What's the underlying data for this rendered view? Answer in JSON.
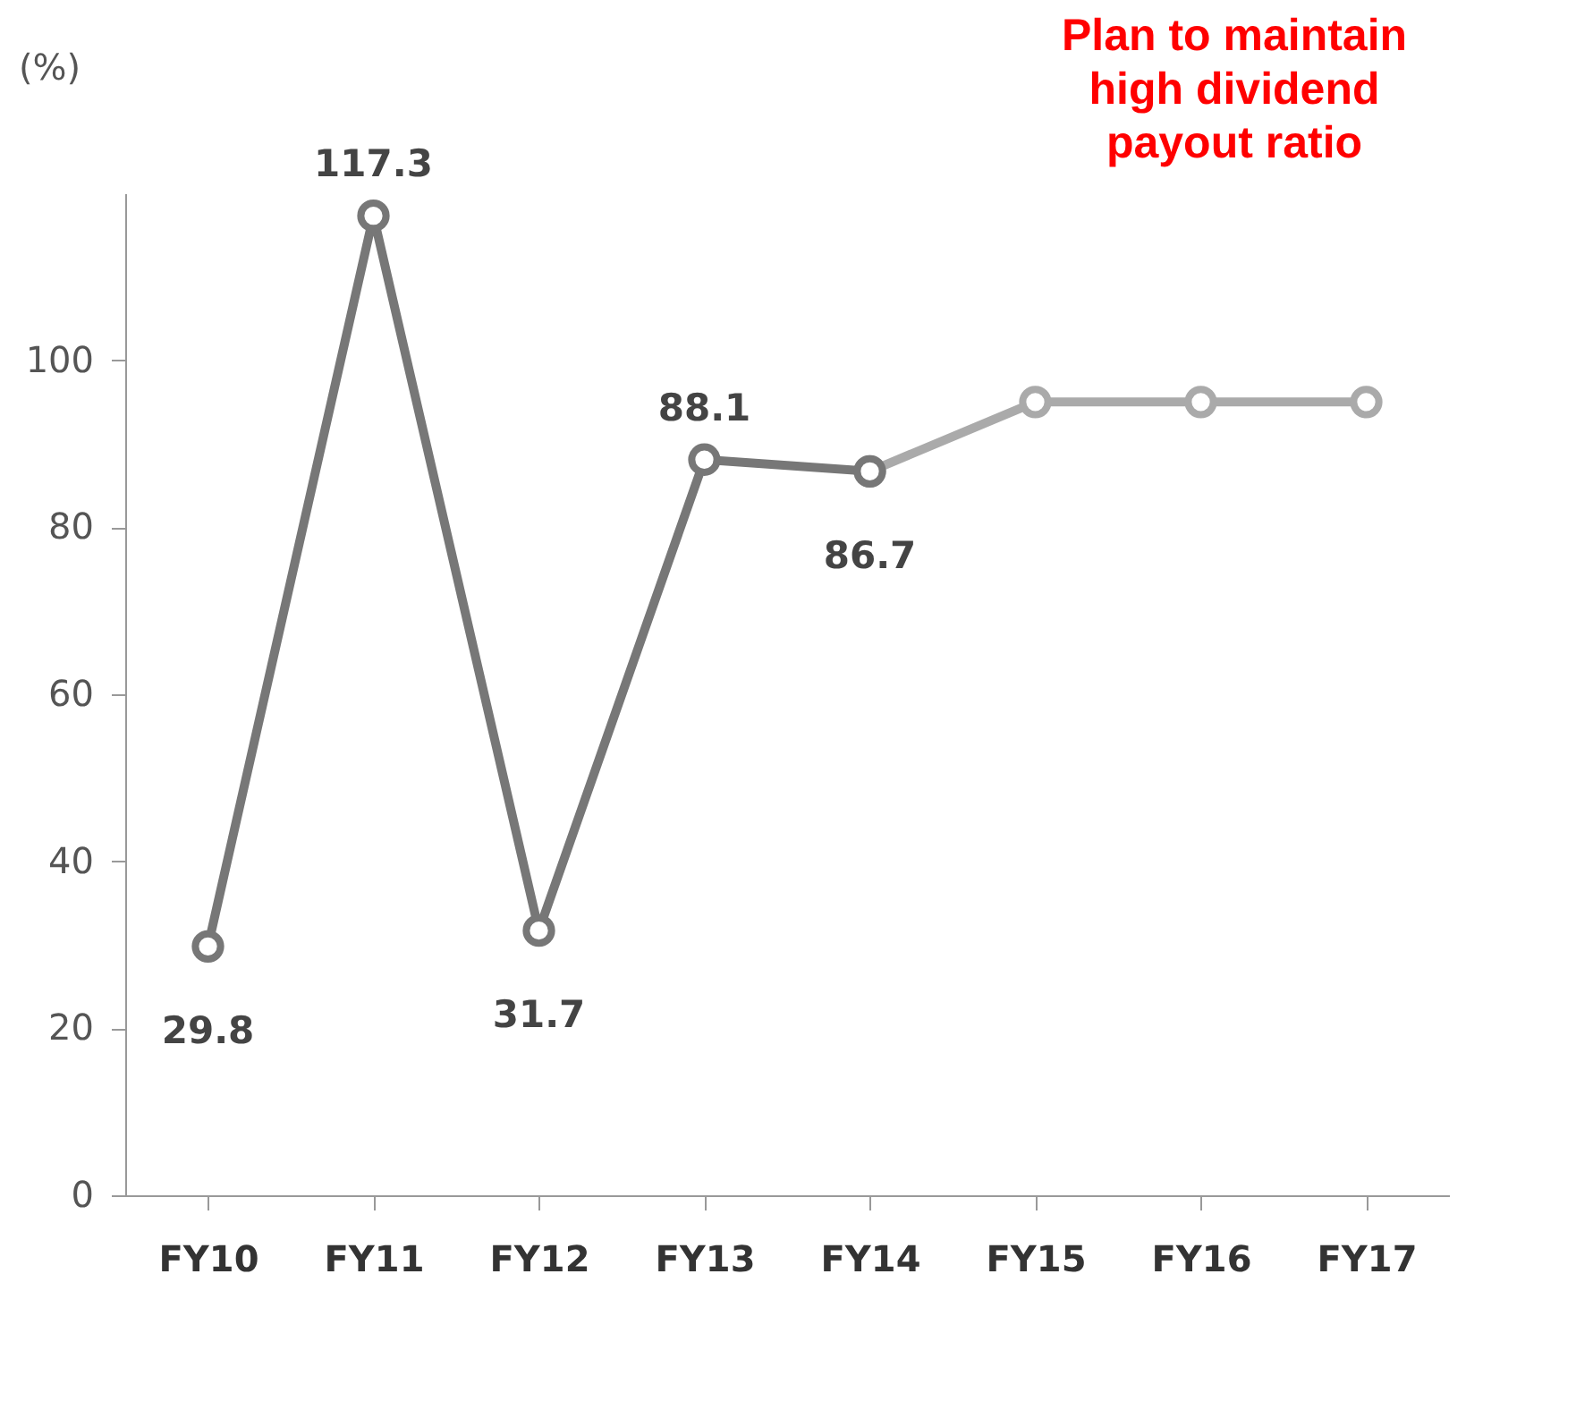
{
  "chart_data": {
    "type": "line",
    "ylabel": "(%)",
    "categories": [
      "FY10",
      "FY11",
      "FY12",
      "FY13",
      "FY14",
      "FY15",
      "FY16",
      "FY17"
    ],
    "series": [
      {
        "color": "#777777",
        "values": [
          29.8,
          117.3,
          31.7,
          88.1,
          86.7,
          null,
          null,
          null
        ],
        "value_labels": [
          "29.8",
          "117.3",
          "31.7",
          "88.1",
          "86.7",
          null,
          null,
          null
        ]
      },
      {
        "color": "#aaaaaa",
        "values": [
          null,
          null,
          null,
          null,
          86.7,
          95,
          95,
          95
        ]
      }
    ],
    "ylim": [
      0,
      120
    ],
    "yticks": [
      0,
      20,
      40,
      60,
      80,
      100
    ],
    "grid": false,
    "marker": "circle",
    "line_style": "solid",
    "annotations": [
      "Plan to maintain high dividend payout ratio"
    ]
  }
}
